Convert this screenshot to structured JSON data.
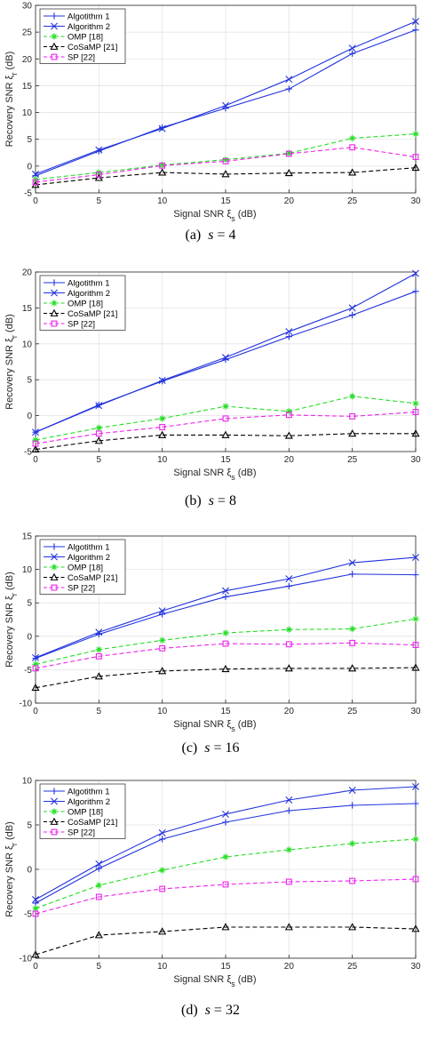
{
  "figure": {
    "captions": [
      {
        "label": "(a)",
        "symbol": "s",
        "rest": " = 4"
      },
      {
        "label": "(b)",
        "symbol": "s",
        "rest": " = 8"
      },
      {
        "label": "(c)",
        "symbol": "s",
        "rest": " = 16"
      },
      {
        "label": "(d)",
        "symbol": "s",
        "rest": " = 32"
      }
    ]
  },
  "chart_data": [
    {
      "type": "line",
      "xlabel": "Signal SNR ξs (dB)",
      "ylabel": "Recovery SNR ξr (dB)",
      "xlim": [
        0,
        30
      ],
      "ylim": [
        -5,
        30
      ],
      "xticks": [
        0,
        5,
        10,
        15,
        20,
        25,
        30
      ],
      "yticks": [
        -5,
        0,
        5,
        10,
        15,
        20,
        25,
        30
      ],
      "grid": true,
      "legend": "top-left",
      "x": [
        0,
        5,
        10,
        15,
        20,
        25,
        30
      ],
      "series": [
        {
          "name": "Algotithm 1",
          "color": "#2233dd",
          "marker": "plus",
          "dash": "solid",
          "values": [
            -1.8,
            2.8,
            7.2,
            10.8,
            14.4,
            21.0,
            25.4
          ]
        },
        {
          "name": "Algorithm 2",
          "color": "#2233dd",
          "marker": "x",
          "dash": "solid",
          "values": [
            -1.5,
            3.0,
            7.0,
            11.3,
            16.2,
            22.0,
            27.0
          ]
        },
        {
          "name": "OMP [18]",
          "color": "#22dd22",
          "marker": "star",
          "dash": "dashed",
          "values": [
            -2.5,
            -1.2,
            0.2,
            1.2,
            2.4,
            5.2,
            6.0
          ]
        },
        {
          "name": "CoSaMP [21]",
          "color": "#000000",
          "marker": "triangle",
          "dash": "dashed",
          "values": [
            -3.5,
            -2.2,
            -1.2,
            -1.5,
            -1.3,
            -1.2,
            -0.3
          ]
        },
        {
          "name": "SP [22]",
          "color": "#ee22ee",
          "marker": "square",
          "dash": "dashed",
          "values": [
            -3.0,
            -1.6,
            0.1,
            0.9,
            2.3,
            3.5,
            1.7
          ]
        }
      ]
    },
    {
      "type": "line",
      "xlabel": "Signal SNR ξs (dB)",
      "ylabel": "Recovery SNR ξr (dB)",
      "xlim": [
        0,
        30
      ],
      "ylim": [
        -5,
        20
      ],
      "xticks": [
        0,
        5,
        10,
        15,
        20,
        25,
        30
      ],
      "yticks": [
        -5,
        0,
        5,
        10,
        15,
        20
      ],
      "grid": true,
      "legend": "top-left",
      "x": [
        0,
        5,
        10,
        15,
        20,
        25,
        30
      ],
      "series": [
        {
          "name": "Algotithm 1",
          "color": "#2233dd",
          "marker": "plus",
          "dash": "solid",
          "values": [
            -2.3,
            1.5,
            4.8,
            7.8,
            11.0,
            14.0,
            17.3
          ]
        },
        {
          "name": "Algorithm 2",
          "color": "#2233dd",
          "marker": "x",
          "dash": "solid",
          "values": [
            -2.3,
            1.4,
            4.9,
            8.1,
            11.7,
            15.0,
            19.8
          ]
        },
        {
          "name": "OMP [18]",
          "color": "#22dd22",
          "marker": "star",
          "dash": "dashed",
          "values": [
            -3.4,
            -1.7,
            -0.4,
            1.3,
            0.6,
            2.7,
            1.7
          ]
        },
        {
          "name": "CoSaMP [21]",
          "color": "#000000",
          "marker": "triangle",
          "dash": "dashed",
          "values": [
            -4.7,
            -3.5,
            -2.7,
            -2.7,
            -2.8,
            -2.5,
            -2.5
          ]
        },
        {
          "name": "SP [22]",
          "color": "#ee22ee",
          "marker": "square",
          "dash": "dashed",
          "values": [
            -3.9,
            -2.5,
            -1.6,
            -0.4,
            0.1,
            -0.1,
            0.5
          ]
        }
      ]
    },
    {
      "type": "line",
      "xlabel": "Signal SNR ξs (dB)",
      "ylabel": "Recovery SNR ξr (dB)",
      "xlim": [
        0,
        30
      ],
      "ylim": [
        -10,
        15
      ],
      "xticks": [
        0,
        5,
        10,
        15,
        20,
        25,
        30
      ],
      "yticks": [
        -10,
        -5,
        0,
        5,
        10,
        15
      ],
      "grid": true,
      "legend": "top-left",
      "x": [
        0,
        5,
        10,
        15,
        20,
        25,
        30
      ],
      "series": [
        {
          "name": "Algotithm 1",
          "color": "#2233dd",
          "marker": "plus",
          "dash": "solid",
          "values": [
            -3.3,
            0.3,
            3.3,
            5.9,
            7.5,
            9.3,
            9.2
          ]
        },
        {
          "name": "Algorithm 2",
          "color": "#2233dd",
          "marker": "x",
          "dash": "solid",
          "values": [
            -3.2,
            0.6,
            3.8,
            6.8,
            8.6,
            11.0,
            11.8
          ]
        },
        {
          "name": "OMP [18]",
          "color": "#22dd22",
          "marker": "star",
          "dash": "dashed",
          "values": [
            -4.2,
            -2.0,
            -0.6,
            0.5,
            1.0,
            1.1,
            2.6
          ]
        },
        {
          "name": "CoSaMP [21]",
          "color": "#000000",
          "marker": "triangle",
          "dash": "dashed",
          "values": [
            -7.7,
            -6.0,
            -5.2,
            -4.9,
            -4.8,
            -4.8,
            -4.7
          ]
        },
        {
          "name": "SP [22]",
          "color": "#ee22ee",
          "marker": "square",
          "dash": "dashed",
          "values": [
            -4.8,
            -3.0,
            -1.8,
            -1.1,
            -1.2,
            -1.0,
            -1.3
          ]
        }
      ]
    },
    {
      "type": "line",
      "xlabel": "Signal SNR ξs (dB)",
      "ylabel": "Recovery SNR ξr (dB)",
      "xlim": [
        0,
        30
      ],
      "ylim": [
        -10,
        10
      ],
      "xticks": [
        0,
        5,
        10,
        15,
        20,
        25,
        30
      ],
      "yticks": [
        -10,
        -5,
        0,
        5,
        10
      ],
      "grid": true,
      "legend": "top-left",
      "x": [
        0,
        5,
        10,
        15,
        20,
        25,
        30
      ],
      "series": [
        {
          "name": "Algotithm 1",
          "color": "#2233dd",
          "marker": "plus",
          "dash": "solid",
          "values": [
            -3.8,
            0.1,
            3.4,
            5.3,
            6.6,
            7.2,
            7.4
          ]
        },
        {
          "name": "Algorithm 2",
          "color": "#2233dd",
          "marker": "x",
          "dash": "solid",
          "values": [
            -3.4,
            0.6,
            4.1,
            6.2,
            7.8,
            8.9,
            9.3
          ]
        },
        {
          "name": "OMP [18]",
          "color": "#22dd22",
          "marker": "star",
          "dash": "dashed",
          "values": [
            -4.4,
            -1.8,
            -0.1,
            1.4,
            2.2,
            2.9,
            3.4
          ]
        },
        {
          "name": "CoSaMP [21]",
          "color": "#000000",
          "marker": "triangle",
          "dash": "dashed",
          "values": [
            -9.6,
            -7.4,
            -7.0,
            -6.5,
            -6.5,
            -6.5,
            -6.7
          ]
        },
        {
          "name": "SP [22]",
          "color": "#ee22ee",
          "marker": "square",
          "dash": "dashed",
          "values": [
            -5.0,
            -3.1,
            -2.2,
            -1.7,
            -1.4,
            -1.3,
            -1.1
          ]
        }
      ]
    }
  ]
}
